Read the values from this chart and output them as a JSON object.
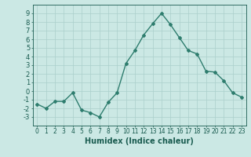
{
  "x": [
    0,
    1,
    2,
    3,
    4,
    5,
    6,
    7,
    8,
    9,
    10,
    11,
    12,
    13,
    14,
    15,
    16,
    17,
    18,
    19,
    20,
    21,
    22,
    23
  ],
  "y": [
    -1.5,
    -2.0,
    -1.2,
    -1.2,
    -0.2,
    -2.2,
    -2.5,
    -3.0,
    -1.3,
    -0.2,
    3.2,
    4.7,
    6.5,
    7.8,
    9.0,
    7.7,
    6.2,
    4.7,
    4.3,
    2.3,
    2.2,
    1.2,
    -0.2,
    -0.7
  ],
  "line_color": "#2e7d6e",
  "marker": "D",
  "marker_size": 2.0,
  "bg_color": "#cbe8e4",
  "grid_color": "#aacfcb",
  "xlabel": "Humidex (Indice chaleur)",
  "xlabel_fontsize": 7,
  "xlabel_color": "#1a5c50",
  "tick_color": "#1a5c50",
  "ylim": [
    -4,
    10
  ],
  "yticks": [
    -3,
    -2,
    -1,
    0,
    1,
    2,
    3,
    4,
    5,
    6,
    7,
    8,
    9
  ],
  "xlim": [
    -0.5,
    23.5
  ],
  "xticks": [
    0,
    1,
    2,
    3,
    4,
    5,
    6,
    7,
    8,
    9,
    10,
    11,
    12,
    13,
    14,
    15,
    16,
    17,
    18,
    19,
    20,
    21,
    22,
    23
  ],
  "xtick_labels": [
    "0",
    "1",
    "2",
    "3",
    "4",
    "5",
    "6",
    "7",
    "8",
    "9",
    "10",
    "11",
    "12",
    "13",
    "14",
    "15",
    "16",
    "17",
    "18",
    "19",
    "20",
    "21",
    "22",
    "23"
  ],
  "line_width": 1.0,
  "tick_fontsize": 5.5,
  "ytick_fontsize": 6.0
}
